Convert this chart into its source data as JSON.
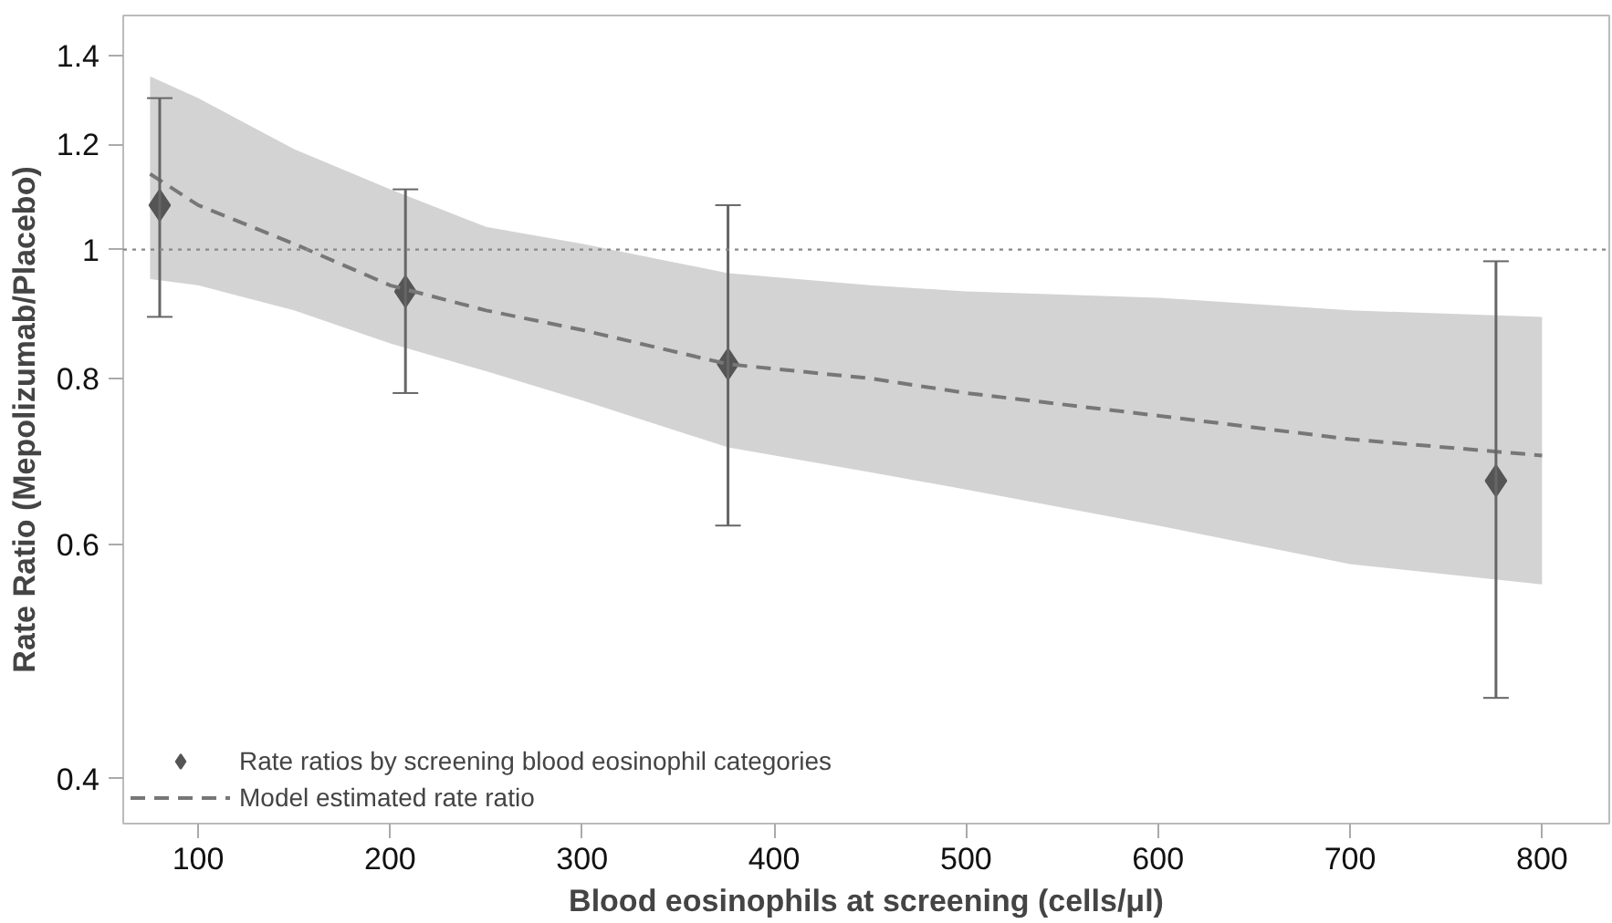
{
  "chart_data": {
    "type": "scatter",
    "xlabel": "Blood eosinophils at screening (cells/μl)",
    "ylabel": "Rate Ratio (Mepolizumab/Placebo)",
    "log": "y",
    "xlim": [
      61,
      835
    ],
    "ylim": [
      0.37,
      1.5
    ],
    "xticks": [
      100,
      200,
      300,
      400,
      500,
      600,
      700,
      800
    ],
    "yticks": [
      0.4,
      0.6,
      0.8,
      1,
      1.2,
      1.4
    ],
    "grid": false,
    "legend": "bottom left",
    "ref_lines": [
      {
        "axis": "y",
        "value": 1,
        "color": "#888888",
        "line_style": "dotted"
      }
    ],
    "series": [
      {
        "name": "Rate ratios by screening blood eosinophil categories",
        "marker": "diamond",
        "color": "#555555",
        "x": [
          80,
          208,
          376,
          776
        ],
        "values": [
          1.08,
          0.93,
          0.82,
          0.67
        ],
        "errors": [
          [
            0.89,
            1.3
          ],
          [
            0.78,
            1.11
          ],
          [
            0.62,
            1.08
          ],
          [
            0.46,
            0.98
          ]
        ]
      },
      {
        "name": "Model estimated rate ratio",
        "type": "line",
        "line_style": "dashed",
        "color": "#777777",
        "x": [
          75,
          100,
          150,
          200,
          250,
          300,
          376,
          450,
          500,
          600,
          700,
          800
        ],
        "values": [
          1.14,
          1.08,
          1.01,
          0.94,
          0.9,
          0.87,
          0.82,
          0.8,
          0.78,
          0.75,
          0.72,
          0.7
        ],
        "lower": [
          0.95,
          0.94,
          0.9,
          0.85,
          0.81,
          0.77,
          0.71,
          0.68,
          0.66,
          0.62,
          0.58,
          0.56
        ],
        "upper": [
          1.35,
          1.3,
          1.19,
          1.11,
          1.04,
          1.01,
          0.96,
          0.94,
          0.93,
          0.92,
          0.9,
          0.89
        ]
      }
    ]
  }
}
